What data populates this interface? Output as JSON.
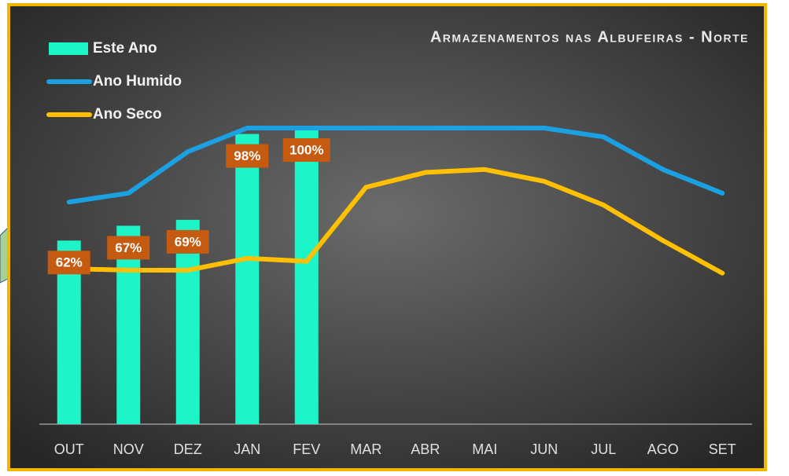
{
  "chart_data": {
    "type": "bar",
    "title": "Armazenamentos nas Albufeiras - Norte",
    "categories": [
      "OUT",
      "NOV",
      "DEZ",
      "JAN",
      "FEV",
      "MAR",
      "ABR",
      "MAI",
      "JUN",
      "JUL",
      "AGO",
      "SET"
    ],
    "series": [
      {
        "name": "Este Ano",
        "type": "bar",
        "color": "#1df5c8",
        "values": [
          62,
          67,
          69,
          98,
          100,
          null,
          null,
          null,
          null,
          null,
          null,
          null
        ],
        "value_labels": [
          "62%",
          "67%",
          "69%",
          "98%",
          "100%",
          null,
          null,
          null,
          null,
          null,
          null,
          null
        ]
      },
      {
        "name": "Ano Humido",
        "type": "line",
        "color": "#1ba1e2",
        "values": [
          75,
          78,
          92,
          100,
          100,
          100,
          100,
          100,
          100,
          97,
          86,
          78
        ]
      },
      {
        "name": "Ano Seco",
        "type": "line",
        "color": "#ffc000",
        "values": [
          52.5,
          52,
          52,
          56,
          55,
          80,
          85,
          86,
          82,
          74,
          62,
          51
        ]
      }
    ]
  }
}
